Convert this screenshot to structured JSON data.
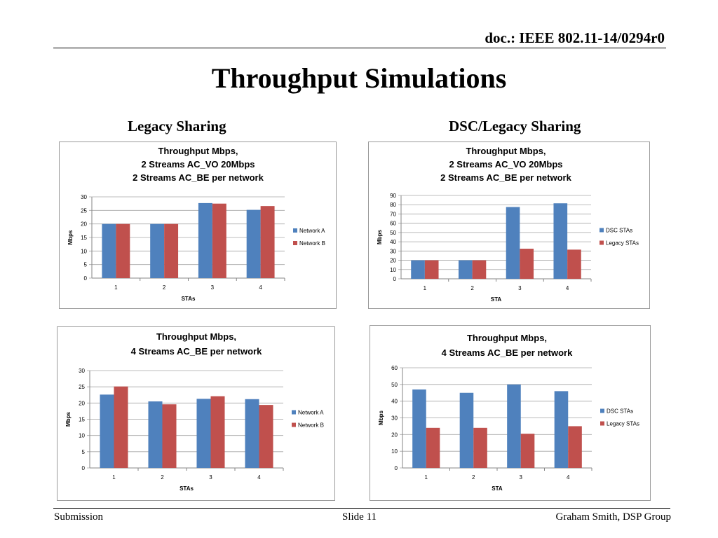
{
  "header": {
    "doc_id": "doc.: IEEE 802.11-14/0294r0"
  },
  "title": "Throughput Simulations",
  "sections": {
    "left": "Legacy Sharing",
    "right": "DSC/Legacy Sharing"
  },
  "footer": {
    "left": "Submission",
    "center": "Slide 11",
    "right": "Graham Smith, DSP Group"
  },
  "colors": {
    "series_a": "#4f81bd",
    "series_b": "#c0504d",
    "grid": "#a6a6a6",
    "border": "#9a9a9a"
  },
  "chart_data": [
    {
      "type": "bar",
      "title_lines": [
        "Throughput Mbps,",
        "2 Streams AC_VO 20Mbps",
        "2 Streams AC_BE  per network"
      ],
      "categories": [
        "1",
        "2",
        "3",
        "4"
      ],
      "series": [
        {
          "name": "Network A",
          "values": [
            20,
            20,
            27.7,
            25.2
          ]
        },
        {
          "name": "Network B",
          "values": [
            20,
            20,
            27.5,
            26.6
          ]
        }
      ],
      "xlabel": "STAs",
      "ylabel": "Mbps",
      "ylim": [
        0,
        30
      ],
      "yticks": [
        "0",
        "5",
        "10",
        "15",
        "20",
        "25",
        "30"
      ],
      "grid": true,
      "legend": "right"
    },
    {
      "type": "bar",
      "title_lines": [
        "Throughput Mbps,",
        "2 Streams AC_VO 20Mbps",
        "2 Streams AC_BE  per network"
      ],
      "categories": [
        "1",
        "2",
        "3",
        "4"
      ],
      "series": [
        {
          "name": "DSC STAs",
          "values": [
            20,
            20,
            77.5,
            81.5
          ]
        },
        {
          "name": "Legacy STAs",
          "values": [
            20,
            20,
            32.5,
            31.5
          ]
        }
      ],
      "xlabel": "STA",
      "ylabel": "Mbps",
      "ylim": [
        0,
        90
      ],
      "yticks": [
        "0",
        "10",
        "20",
        "30",
        "40",
        "50",
        "60",
        "70",
        "80",
        "90"
      ],
      "grid": true,
      "legend": "right"
    },
    {
      "type": "bar",
      "title_lines": [
        "Throughput Mbps,",
        "4 Streams AC_BE  per network"
      ],
      "categories": [
        "1",
        "2",
        "3",
        "4"
      ],
      "series": [
        {
          "name": "Network A",
          "values": [
            22.6,
            20.5,
            21.3,
            21.2
          ]
        },
        {
          "name": "Network B",
          "values": [
            25.1,
            19.6,
            22.1,
            19.4
          ]
        }
      ],
      "xlabel": "STAs",
      "ylabel": "Mbps",
      "ylim": [
        0,
        30
      ],
      "yticks": [
        "0",
        "5",
        "10",
        "15",
        "20",
        "25",
        "30"
      ],
      "grid": true,
      "legend": "right"
    },
    {
      "type": "bar",
      "title_lines": [
        "Throughput Mbps,",
        "4 Streams AC_BE  per network"
      ],
      "categories": [
        "1",
        "2",
        "3",
        "4"
      ],
      "series": [
        {
          "name": "DSC STAs",
          "values": [
            47,
            45,
            50,
            46
          ]
        },
        {
          "name": "Legacy STAs",
          "values": [
            24,
            24,
            20.5,
            25
          ]
        }
      ],
      "xlabel": "STA",
      "ylabel": "Mbps",
      "ylim": [
        0,
        60
      ],
      "yticks": [
        "0",
        "10",
        "20",
        "30",
        "40",
        "50",
        "60"
      ],
      "grid": true,
      "legend": "right"
    }
  ]
}
